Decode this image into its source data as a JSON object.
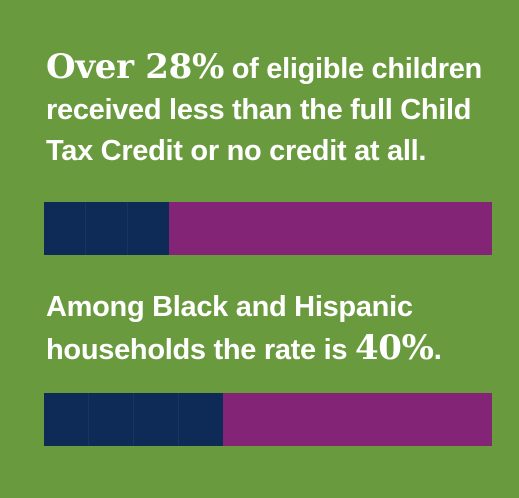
{
  "stat1": {
    "highlight": "Over 28%",
    "text": " of eligible children received less than the full Child Tax Credit or no credit at all."
  },
  "bar1": {
    "value_percent": 28,
    "segments": 3
  },
  "stat2": {
    "text": "Among Black and Hispanic households the rate is ",
    "highlight": "40%",
    "suffix": "."
  },
  "bar2": {
    "value_percent": 40,
    "segments": 4
  },
  "colors": {
    "background": "#6a9a3e",
    "filled": "#0e2a57",
    "remainder": "#842477",
    "text": "#ffffff"
  }
}
